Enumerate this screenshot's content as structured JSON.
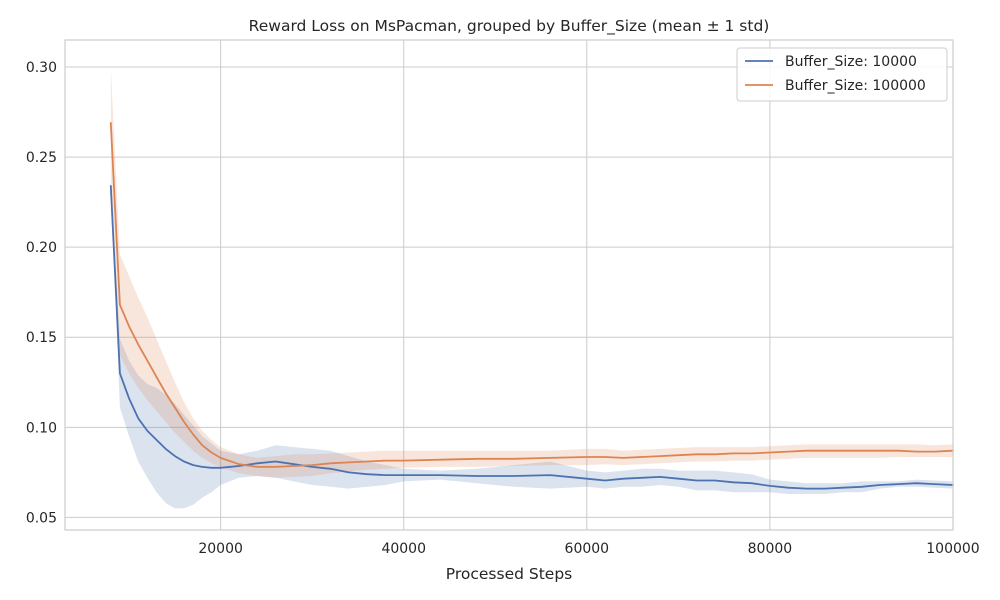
{
  "chart_data": {
    "type": "line",
    "title": "Reward Loss on MsPacman, grouped by Buffer_Size (mean ± 1 std)",
    "xlabel": "Processed Steps",
    "ylabel": "",
    "xlim": [
      3000,
      100000
    ],
    "ylim": [
      0.043,
      0.315
    ],
    "x_ticks": [
      20000,
      40000,
      60000,
      80000,
      100000
    ],
    "x_tick_labels": [
      "20000",
      "40000",
      "60000",
      "80000",
      "100000"
    ],
    "y_ticks": [
      0.05,
      0.1,
      0.15,
      0.2,
      0.25,
      0.3
    ],
    "y_tick_labels": [
      "0.05",
      "0.10",
      "0.15",
      "0.20",
      "0.25",
      "0.30"
    ],
    "grid": true,
    "legend_position": "top-right",
    "band": "mean ± 1 std",
    "series": [
      {
        "name": "Buffer_Size: 10000",
        "color": "#4c72b0",
        "band_color": "#4c72b0",
        "x": [
          8000,
          9000,
          10000,
          11000,
          12000,
          13000,
          14000,
          15000,
          16000,
          17000,
          18000,
          19000,
          20000,
          22000,
          24000,
          26000,
          28000,
          30000,
          32000,
          34000,
          36000,
          38000,
          40000,
          44000,
          48000,
          52000,
          56000,
          60000,
          62000,
          64000,
          66000,
          68000,
          70000,
          72000,
          74000,
          76000,
          78000,
          80000,
          82000,
          84000,
          86000,
          88000,
          90000,
          92000,
          94000,
          96000,
          98000,
          100000
        ],
        "mean": [
          0.234,
          0.13,
          0.116,
          0.105,
          0.098,
          0.093,
          0.088,
          0.084,
          0.081,
          0.079,
          0.078,
          0.0775,
          0.0775,
          0.0785,
          0.08,
          0.081,
          0.0795,
          0.078,
          0.077,
          0.075,
          0.074,
          0.0735,
          0.0735,
          0.0735,
          0.073,
          0.073,
          0.0735,
          0.0715,
          0.0705,
          0.0715,
          0.072,
          0.0725,
          0.0715,
          0.0705,
          0.0705,
          0.0695,
          0.069,
          0.0675,
          0.0665,
          0.066,
          0.066,
          0.0665,
          0.067,
          0.068,
          0.0685,
          0.069,
          0.0685,
          0.068
        ],
        "lower": [
          0.234,
          0.111,
          0.095,
          0.081,
          0.072,
          0.064,
          0.058,
          0.055,
          0.055,
          0.057,
          0.061,
          0.064,
          0.068,
          0.072,
          0.073,
          0.072,
          0.07,
          0.068,
          0.067,
          0.066,
          0.067,
          0.068,
          0.07,
          0.071,
          0.069,
          0.067,
          0.066,
          0.067,
          0.066,
          0.067,
          0.067,
          0.068,
          0.067,
          0.065,
          0.065,
          0.064,
          0.064,
          0.064,
          0.063,
          0.063,
          0.063,
          0.064,
          0.064,
          0.066,
          0.067,
          0.067,
          0.0665,
          0.066
        ],
        "upper": [
          0.234,
          0.149,
          0.137,
          0.129,
          0.124,
          0.122,
          0.118,
          0.113,
          0.107,
          0.101,
          0.095,
          0.091,
          0.087,
          0.085,
          0.087,
          0.09,
          0.089,
          0.088,
          0.087,
          0.084,
          0.081,
          0.079,
          0.077,
          0.076,
          0.077,
          0.079,
          0.081,
          0.076,
          0.075,
          0.076,
          0.077,
          0.077,
          0.076,
          0.076,
          0.076,
          0.075,
          0.074,
          0.071,
          0.07,
          0.069,
          0.069,
          0.069,
          0.07,
          0.07,
          0.07,
          0.071,
          0.0705,
          0.07
        ]
      },
      {
        "name": "Buffer_Size: 100000",
        "color": "#dd8452",
        "band_color": "#dd8452",
        "x": [
          8000,
          9000,
          10000,
          11000,
          12000,
          13000,
          14000,
          15000,
          16000,
          17000,
          18000,
          19000,
          20000,
          22000,
          24000,
          26000,
          28000,
          30000,
          32000,
          34000,
          36000,
          38000,
          40000,
          44000,
          48000,
          52000,
          56000,
          60000,
          62000,
          64000,
          66000,
          68000,
          70000,
          72000,
          74000,
          76000,
          78000,
          80000,
          82000,
          84000,
          86000,
          88000,
          90000,
          92000,
          94000,
          96000,
          98000,
          100000
        ],
        "mean": [
          0.269,
          0.168,
          0.156,
          0.146,
          0.137,
          0.128,
          0.119,
          0.111,
          0.103,
          0.096,
          0.09,
          0.086,
          0.083,
          0.0795,
          0.078,
          0.078,
          0.0785,
          0.079,
          0.08,
          0.0805,
          0.081,
          0.0815,
          0.0815,
          0.082,
          0.0825,
          0.0825,
          0.083,
          0.0835,
          0.0835,
          0.083,
          0.0835,
          0.084,
          0.0845,
          0.085,
          0.085,
          0.0855,
          0.0855,
          0.086,
          0.0865,
          0.087,
          0.087,
          0.087,
          0.087,
          0.087,
          0.087,
          0.0865,
          0.0865,
          0.087
        ],
        "lower": [
          0.238,
          0.14,
          0.13,
          0.122,
          0.115,
          0.109,
          0.103,
          0.097,
          0.092,
          0.087,
          0.083,
          0.08,
          0.078,
          0.0745,
          0.073,
          0.072,
          0.0725,
          0.073,
          0.0745,
          0.0755,
          0.0765,
          0.077,
          0.0775,
          0.078,
          0.078,
          0.0785,
          0.079,
          0.079,
          0.0795,
          0.079,
          0.0795,
          0.08,
          0.0805,
          0.081,
          0.081,
          0.0815,
          0.0815,
          0.082,
          0.0825,
          0.083,
          0.083,
          0.083,
          0.083,
          0.083,
          0.0835,
          0.0835,
          0.0835,
          0.0835
        ],
        "upper": [
          0.3,
          0.196,
          0.184,
          0.172,
          0.161,
          0.149,
          0.137,
          0.125,
          0.114,
          0.105,
          0.098,
          0.093,
          0.089,
          0.085,
          0.083,
          0.084,
          0.085,
          0.085,
          0.0855,
          0.086,
          0.0865,
          0.087,
          0.087,
          0.087,
          0.087,
          0.087,
          0.087,
          0.088,
          0.088,
          0.087,
          0.0875,
          0.088,
          0.0885,
          0.089,
          0.089,
          0.089,
          0.089,
          0.0895,
          0.09,
          0.0905,
          0.0905,
          0.0905,
          0.0905,
          0.0905,
          0.0905,
          0.0905,
          0.09,
          0.0905
        ]
      }
    ]
  }
}
